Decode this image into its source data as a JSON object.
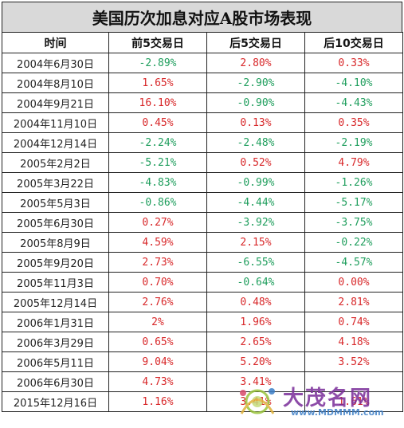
{
  "title": "美国历次加息对应A股市场表现",
  "headers": [
    "时间",
    "前5交易日",
    "后5交易日",
    "后10交易日"
  ],
  "rows": [
    {
      "date": "2004年6月30日",
      "v": [
        "-2.89%",
        "2.80%",
        "0.33%"
      ]
    },
    {
      "date": "2004年8月10日",
      "v": [
        "1.65%",
        "-2.90%",
        "-4.10%"
      ]
    },
    {
      "date": "2004年9月21日",
      "v": [
        "16.10%",
        "-0.90%",
        "-4.43%"
      ]
    },
    {
      "date": "2004年11月10日",
      "v": [
        "0.45%",
        "0.13%",
        "0.35%"
      ]
    },
    {
      "date": "2004年12月14日",
      "v": [
        "-2.24%",
        "-2.48%",
        "-2.19%"
      ]
    },
    {
      "date": "2005年2月2日",
      "v": [
        "-5.21%",
        "0.52%",
        "4.79%"
      ]
    },
    {
      "date": "2005年3月22日",
      "v": [
        "-4.83%",
        "-0.99%",
        "-1.26%"
      ]
    },
    {
      "date": "2005年5月3日",
      "v": [
        "-0.86%",
        "-4.44%",
        "-5.17%"
      ]
    },
    {
      "date": "2005年6月30日",
      "v": [
        "0.27%",
        "-3.92%",
        "-3.75%"
      ]
    },
    {
      "date": "2005年8月9日",
      "v": [
        "4.59%",
        "2.15%",
        "-0.22%"
      ]
    },
    {
      "date": "2005年9月20日",
      "v": [
        "2.73%",
        "-6.55%",
        "-4.57%"
      ]
    },
    {
      "date": "2005年11月3日",
      "v": [
        "0.70%",
        "-0.64%",
        "0.00%"
      ]
    },
    {
      "date": "2005年12月14日",
      "v": [
        "2.76%",
        "0.48%",
        "2.81%"
      ]
    },
    {
      "date": "2006年1月31日",
      "v": [
        "2%",
        "1.96%",
        "0.74%"
      ]
    },
    {
      "date": "2006年3月29日",
      "v": [
        "0.65%",
        "2.65%",
        "4.18%"
      ]
    },
    {
      "date": "2006年5月11日",
      "v": [
        "9.04%",
        "5.20%",
        "3.52%"
      ]
    },
    {
      "date": "2006年6月30日",
      "v": [
        "4.73%",
        "3.41%",
        ""
      ]
    },
    {
      "date": "2015年12月16日",
      "v": [
        "1.16%",
        "3.41%",
        "1.61%"
      ]
    }
  ],
  "watermark": {
    "name": "大茂名网",
    "url": "www.MDMMM.com"
  },
  "colors": {
    "positive": "#d8282a",
    "negative": "#1f9e5d",
    "title_bg": "#d9d9d9"
  }
}
